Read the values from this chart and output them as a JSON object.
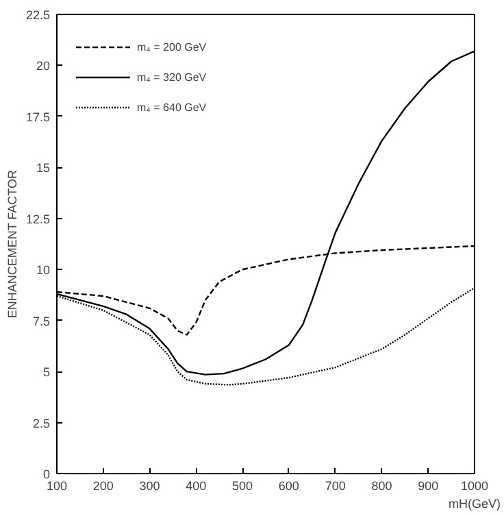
{
  "chart_data": {
    "type": "line",
    "xlabel": "mH(GeV)",
    "ylabel": "ENHANCEMENT FACTOR",
    "xlim": [
      100,
      1000
    ],
    "ylim": [
      0,
      22.5
    ],
    "xticks": [
      100,
      200,
      300,
      400,
      500,
      600,
      700,
      800,
      900,
      1000
    ],
    "yticks": [
      0,
      2.5,
      5,
      7.5,
      10,
      12.5,
      15,
      17.5,
      20,
      22.5
    ],
    "grid": false,
    "legend": "top left",
    "marker": "none",
    "series": [
      {
        "name": "m₄ = 200 GeV",
        "color": "#000000",
        "line_style": "dashed",
        "x": [
          100,
          200,
          300,
          340,
          360,
          380,
          400,
          420,
          450,
          500,
          600,
          700,
          800,
          900,
          1000
        ],
        "values": [
          8.9,
          8.7,
          8.1,
          7.6,
          7.0,
          6.8,
          7.4,
          8.5,
          9.4,
          10.0,
          10.5,
          10.8,
          10.95,
          11.05,
          11.15
        ]
      },
      {
        "name": "m₄ = 320 GeV",
        "color": "#000000",
        "line_style": "solid",
        "x": [
          100,
          200,
          250,
          300,
          340,
          360,
          380,
          420,
          460,
          500,
          550,
          600,
          630,
          650,
          680,
          700,
          750,
          800,
          850,
          900,
          950,
          1000
        ],
        "values": [
          8.8,
          8.2,
          7.8,
          7.1,
          6.1,
          5.4,
          5.0,
          4.85,
          4.9,
          5.15,
          5.6,
          6.3,
          7.3,
          8.5,
          10.5,
          11.8,
          14.2,
          16.3,
          17.9,
          19.2,
          20.2,
          20.7
        ]
      },
      {
        "name": "m₄ = 640 GeV",
        "color": "#000000",
        "line_style": "dotted",
        "x": [
          100,
          200,
          300,
          340,
          360,
          380,
          420,
          470,
          500,
          600,
          700,
          800,
          850,
          900,
          950,
          1000
        ],
        "values": [
          8.7,
          8.0,
          6.8,
          5.8,
          5.0,
          4.6,
          4.4,
          4.35,
          4.4,
          4.7,
          5.2,
          6.1,
          6.8,
          7.6,
          8.4,
          9.1
        ]
      }
    ]
  }
}
